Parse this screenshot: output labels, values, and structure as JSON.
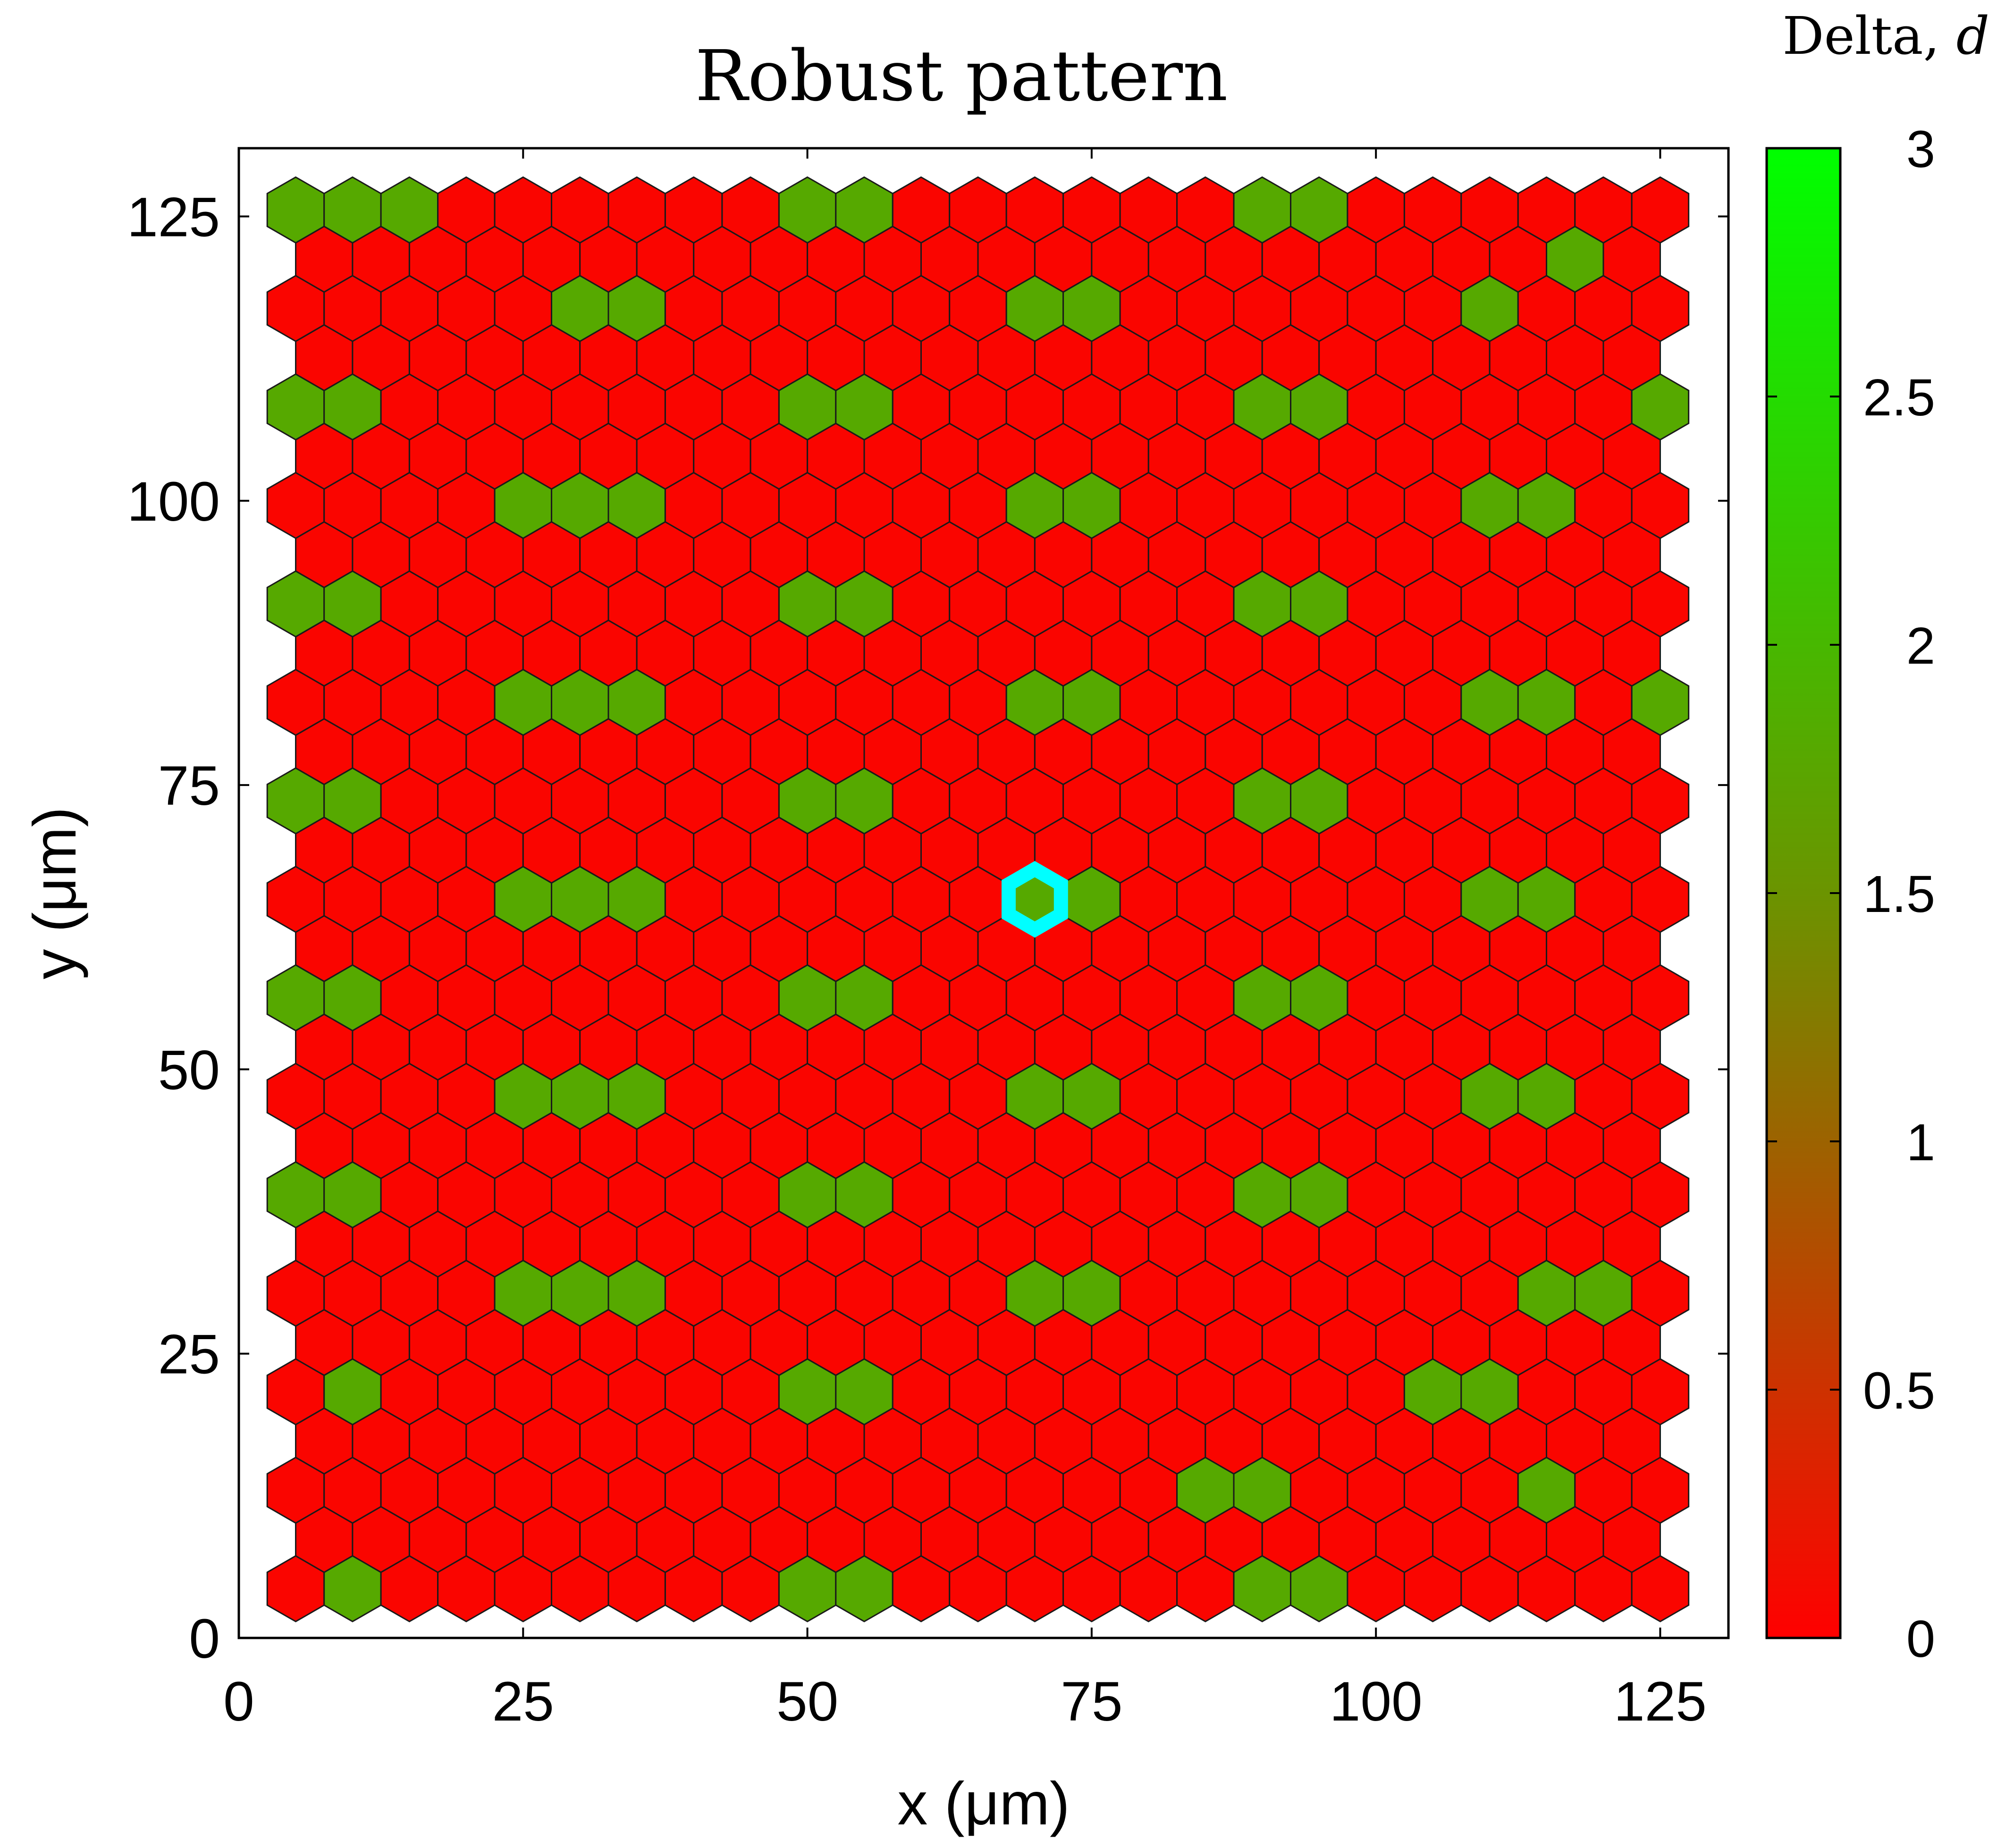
{
  "chart_data": {
    "type": "heatmap",
    "title": "Robust pattern",
    "xlabel": "x (μm)",
    "ylabel": "y (μm)",
    "xlim": [
      0,
      131
    ],
    "ylim": [
      0,
      131
    ],
    "xticks": [
      "0",
      "25",
      "50",
      "75",
      "100",
      "125"
    ],
    "yticks": [
      "0",
      "25",
      "50",
      "75",
      "100",
      "125"
    ],
    "colorbar": {
      "label_text": "Delta, ",
      "label_var": "d",
      "range": [
        0,
        3
      ],
      "ticks": [
        "0",
        "0.5",
        "1",
        "1.5",
        "2",
        "2.5",
        "3"
      ],
      "low_color": "#ff0000",
      "mid_color": "#6b9400",
      "high_color": "#00ff00"
    },
    "grid": {
      "cell_spacing_x_um": 5,
      "row_spacing_y_um": 4.33,
      "first_row_y_um": 4.33,
      "even_row_x_start_um": 5,
      "odd_row_x_start_um": 7.5,
      "even_row_cells": 25,
      "odd_row_cells": 24,
      "rows": 29
    },
    "cell_values": {
      "low": 0.05,
      "high": 1.8,
      "high_cells_by_row": {
        "0": [
          1,
          9,
          10,
          17,
          18
        ],
        "2": [
          16,
          17,
          22
        ],
        "4": [
          1,
          9,
          10,
          20,
          21
        ],
        "6": [
          4,
          5,
          6,
          13,
          14,
          22,
          23
        ],
        "8": [
          0,
          1,
          9,
          10,
          17,
          18
        ],
        "10": [
          4,
          5,
          6,
          13,
          14,
          21,
          22
        ],
        "12": [
          0,
          1,
          9,
          10,
          17,
          18
        ],
        "14": [
          4,
          5,
          6,
          13,
          14,
          21,
          22
        ],
        "16": [
          0,
          1,
          9,
          10,
          17,
          18
        ],
        "18": [
          4,
          5,
          6,
          13,
          14,
          21,
          22,
          24
        ],
        "20": [
          0,
          1,
          9,
          10,
          17,
          18
        ],
        "22": [
          4,
          5,
          6,
          13,
          14,
          21,
          22
        ],
        "24": [
          0,
          1,
          9,
          10,
          17,
          18,
          24
        ],
        "26": [
          5,
          6,
          13,
          14,
          21
        ],
        "27": [
          22
        ],
        "28": [
          0,
          1,
          2,
          9,
          10,
          17,
          18
        ]
      }
    },
    "highlight": {
      "x": 70,
      "y": 64.95,
      "color": "#00ffff"
    }
  }
}
